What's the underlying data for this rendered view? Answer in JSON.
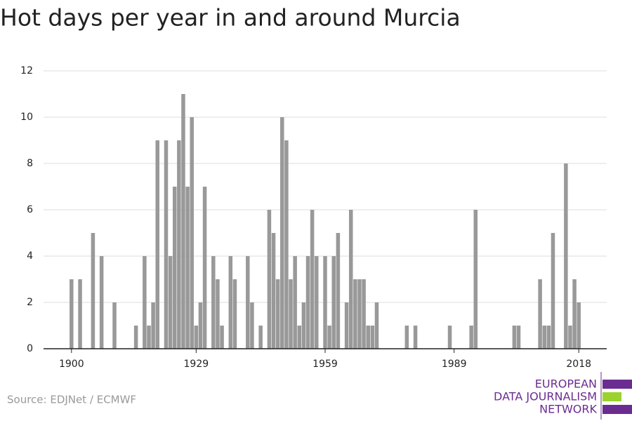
{
  "chart_data": {
    "type": "bar",
    "title": "Hot days per year in and around Murcia",
    "x": [
      1900,
      1902,
      1905,
      1907,
      1910,
      1915,
      1917,
      1918,
      1919,
      1920,
      1922,
      1923,
      1924,
      1925,
      1926,
      1927,
      1928,
      1929,
      1930,
      1931,
      1933,
      1934,
      1935,
      1937,
      1938,
      1941,
      1942,
      1944,
      1946,
      1947,
      1948,
      1949,
      1950,
      1951,
      1952,
      1953,
      1954,
      1955,
      1956,
      1957,
      1959,
      1960,
      1961,
      1962,
      1964,
      1965,
      1966,
      1967,
      1968,
      1969,
      1970,
      1971,
      1978,
      1980,
      1988,
      1993,
      1994,
      2003,
      2004,
      2009,
      2010,
      2011,
      2012,
      2015,
      2016,
      2017,
      2018
    ],
    "values": [
      3,
      3,
      5,
      4,
      2,
      1,
      4,
      1,
      2,
      9,
      9,
      4,
      7,
      9,
      11,
      7,
      10,
      1,
      2,
      7,
      4,
      3,
      1,
      4,
      3,
      4,
      2,
      1,
      6,
      5,
      3,
      10,
      9,
      3,
      4,
      1,
      2,
      4,
      6,
      4,
      4,
      1,
      4,
      5,
      2,
      6,
      3,
      3,
      3,
      1,
      1,
      2,
      1,
      1,
      1,
      1,
      6,
      1,
      1,
      3,
      1,
      1,
      5,
      8,
      1,
      3,
      2
    ],
    "color": "#999999",
    "xlim": [
      1893.5,
      2024.5
    ],
    "xticks": [
      1900,
      1929,
      1959,
      1989,
      2018
    ],
    "ylim": [
      0,
      12
    ],
    "yticks": [
      0,
      2,
      4,
      6,
      8,
      10,
      12
    ],
    "grid": true,
    "source": "Source: EDJNet / ECMWF",
    "logo": [
      "EUROPEAN",
      "DATA JOURNALISM",
      "NETWORK"
    ]
  }
}
